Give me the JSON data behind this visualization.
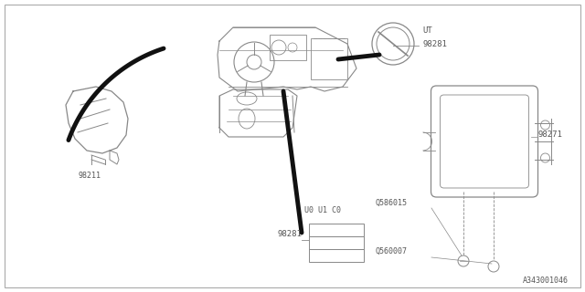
{
  "bg_color": "#ffffff",
  "line_color": "#888888",
  "thick_line_color": "#111111",
  "part_label_color": "#555555",
  "border_color": "#aaaaaa",
  "diagram_label": "A343001046",
  "ut_label": "UT",
  "u0_u1_c0_label": "U0 U1 C0",
  "label_98211": "98211",
  "label_98281": "98281",
  "label_98271": "98271",
  "label_Q586015": "Q586015",
  "label_Q560007": "Q560007"
}
